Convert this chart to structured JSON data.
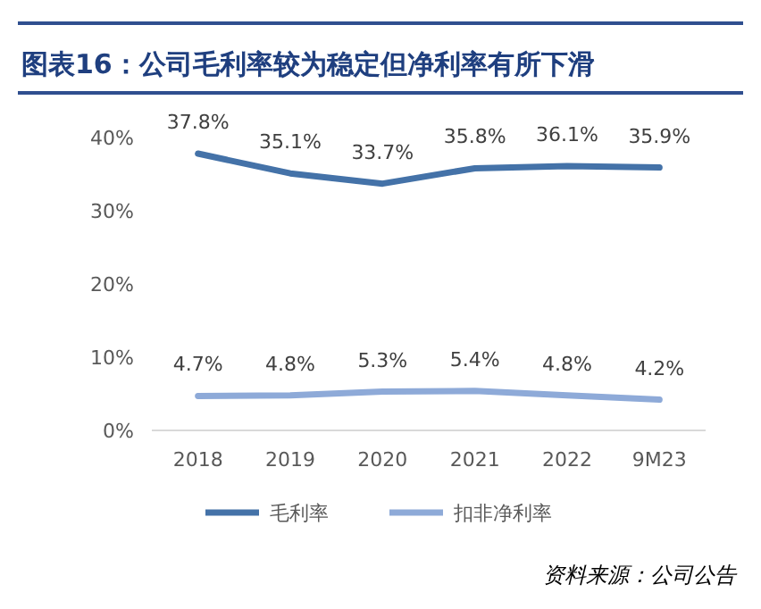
{
  "chart_data": {
    "type": "line",
    "title": "图表16：公司毛利率较为稳定但净利率有所下滑",
    "categories": [
      "2018",
      "2019",
      "2020",
      "2021",
      "2022",
      "9M23"
    ],
    "series": [
      {
        "name": "毛利率",
        "color": "#4472a8",
        "values": [
          37.8,
          35.1,
          33.7,
          35.8,
          36.1,
          35.9
        ],
        "value_labels": [
          "37.8%",
          "35.1%",
          "33.7%",
          "35.8%",
          "36.1%",
          "35.9%"
        ]
      },
      {
        "name": "扣非净利率",
        "color": "#8eaad8",
        "values": [
          4.7,
          4.8,
          5.3,
          5.4,
          4.8,
          4.2
        ],
        "value_labels": [
          "4.7%",
          "4.8%",
          "5.3%",
          "5.4%",
          "4.8%",
          "4.2%"
        ]
      }
    ],
    "ylim": [
      0,
      40
    ],
    "yticks": [
      {
        "value": 0,
        "label": "0%"
      },
      {
        "value": 10,
        "label": "10%"
      },
      {
        "value": 20,
        "label": "20%"
      },
      {
        "value": 30,
        "label": "30%"
      },
      {
        "value": 40,
        "label": "40%"
      }
    ],
    "grid": false,
    "legend": "bottom",
    "marker": "none",
    "line_style": "solid",
    "annotations": [
      "资料来源：公司公告"
    ]
  }
}
